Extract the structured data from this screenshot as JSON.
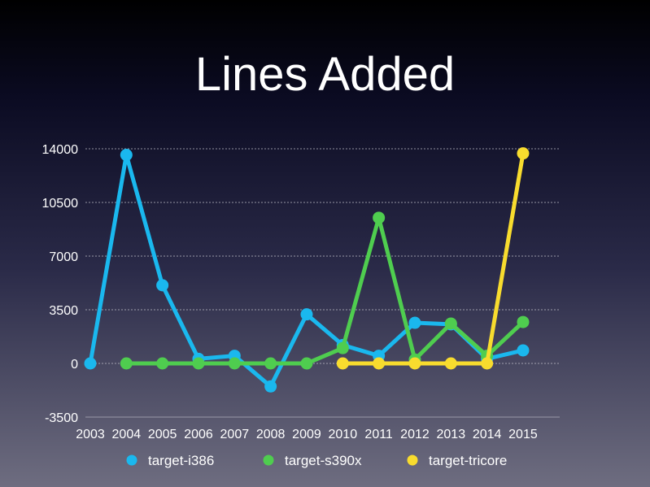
{
  "chart_data": {
    "type": "line",
    "title": "Lines Added",
    "xlabel": "",
    "ylabel": "",
    "categories": [
      "2003",
      "2004",
      "2005",
      "2006",
      "2007",
      "2008",
      "2009",
      "2010",
      "2011",
      "2012",
      "2013",
      "2014",
      "2015"
    ],
    "ylim": [
      -3500,
      14000
    ],
    "yticks": [
      -3500,
      0,
      3500,
      7000,
      10500,
      14000
    ],
    "grid": true,
    "legend_position": "bottom",
    "series": [
      {
        "name": "target-i386",
        "color": "#1ab8ee",
        "values": [
          0,
          13600,
          5100,
          300,
          500,
          -1500,
          3200,
          1200,
          500,
          2650,
          2550,
          300,
          850
        ]
      },
      {
        "name": "target-s390x",
        "color": "#4fcd4f",
        "values": [
          null,
          0,
          0,
          0,
          0,
          0,
          0,
          1000,
          9500,
          250,
          2600,
          500,
          2700
        ]
      },
      {
        "name": "target-tricore",
        "color": "#f8dc2e",
        "values": [
          null,
          null,
          null,
          null,
          null,
          null,
          null,
          0,
          0,
          0,
          0,
          0,
          13700
        ]
      }
    ]
  }
}
